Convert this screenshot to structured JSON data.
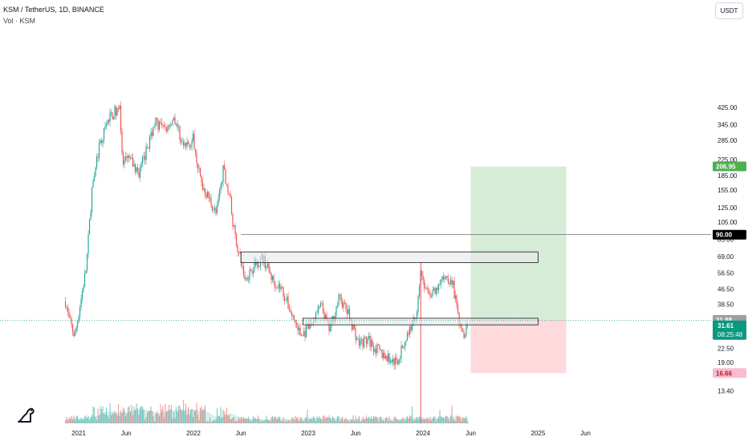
{
  "header": {
    "symbol_line": "KSM / TetherUS, 1D, BINANCE",
    "volume_line": "Vol · KSM",
    "currency_button": "USDT"
  },
  "colors": {
    "up": "#26a69a",
    "down": "#ef5350",
    "target_zone": "#c8e6c9",
    "stop_zone": "#ffcdd2",
    "target_label": "#4caf50",
    "stop_label": "#f8bbd0",
    "current_price": "#089981",
    "line_label_bg": "#000000"
  },
  "chart_data": {
    "type": "candlestick",
    "scale": "log",
    "x_tick_labels": [
      "2021",
      "Jun",
      "2022",
      "Jun",
      "2023",
      "Jun",
      "2024",
      "Jun",
      "2025",
      "Jun"
    ],
    "y_tick_labels": [
      "425.00",
      "345.00",
      "285.00",
      "225.00",
      "185.00",
      "155.00",
      "125.00",
      "105.00",
      "85.00",
      "69.00",
      "56.50",
      "46.50",
      "38.50",
      "27.50",
      "22.50",
      "19.00",
      "13.40"
    ],
    "y_ticks": [
      425,
      345,
      285,
      225,
      185,
      155,
      125,
      105,
      85,
      69,
      56.5,
      46.5,
      38.5,
      27.5,
      22.5,
      19.0,
      13.4
    ],
    "price_path": [
      [
        "2020-11-20",
        40
      ],
      [
        "2020-12-01",
        32
      ],
      [
        "2020-12-20",
        26
      ],
      [
        "2021-01-05",
        38
      ],
      [
        "2021-01-25",
        60
      ],
      [
        "2021-02-15",
        180
      ],
      [
        "2021-03-05",
        250
      ],
      [
        "2021-03-25",
        320
      ],
      [
        "2021-04-10",
        380
      ],
      [
        "2021-04-25",
        400
      ],
      [
        "2021-05-12",
        440
      ],
      [
        "2021-05-20",
        210
      ],
      [
        "2021-06-10",
        230
      ],
      [
        "2021-07-10",
        190
      ],
      [
        "2021-08-01",
        240
      ],
      [
        "2021-09-01",
        360
      ],
      [
        "2021-10-01",
        320
      ],
      [
        "2021-11-01",
        380
      ],
      [
        "2021-12-01",
        260
      ],
      [
        "2022-01-01",
        290
      ],
      [
        "2022-01-25",
        170
      ],
      [
        "2022-02-20",
        140
      ],
      [
        "2022-03-15",
        115
      ],
      [
        "2022-04-05",
        200
      ],
      [
        "2022-04-25",
        150
      ],
      [
        "2022-05-10",
        95
      ],
      [
        "2022-05-25",
        72
      ],
      [
        "2022-06-15",
        52
      ],
      [
        "2022-07-10",
        62
      ],
      [
        "2022-08-10",
        68
      ],
      [
        "2022-09-10",
        52
      ],
      [
        "2022-10-10",
        46
      ],
      [
        "2022-11-10",
        34
      ],
      [
        "2022-12-10",
        26
      ],
      [
        "2023-01-10",
        30
      ],
      [
        "2023-02-10",
        38
      ],
      [
        "2023-03-10",
        28
      ],
      [
        "2023-04-10",
        42
      ],
      [
        "2023-05-10",
        34
      ],
      [
        "2023-06-10",
        24
      ],
      [
        "2023-07-10",
        25
      ],
      [
        "2023-08-10",
        22
      ],
      [
        "2023-09-10",
        20
      ],
      [
        "2023-10-10",
        19
      ],
      [
        "2023-11-10",
        26
      ],
      [
        "2023-12-10",
        34
      ],
      [
        "2023-12-25",
        58
      ],
      [
        "2024-01-10",
        45
      ],
      [
        "2024-02-10",
        44
      ],
      [
        "2024-03-10",
        55
      ],
      [
        "2024-04-05",
        50
      ],
      [
        "2024-04-20",
        34
      ],
      [
        "2024-05-10",
        27
      ],
      [
        "2024-05-25",
        31.6
      ]
    ],
    "horizontal_line": 90.0,
    "zones": [
      {
        "name": "resistance",
        "low": 64,
        "high": 73,
        "from": "2022-06-01",
        "to": "2025-01-01"
      },
      {
        "name": "support",
        "low": 30,
        "high": 32.5,
        "from": "2022-12-15",
        "to": "2025-01-01"
      }
    ],
    "position": {
      "entry": 31.88,
      "target": 206.95,
      "stop": 16.66,
      "from": "2024-06-01",
      "to": "2025-04-01"
    },
    "labels": {
      "target": "206.95",
      "line": "90.00",
      "entry": "31.88",
      "current": "31.61",
      "countdown": "08:25:48",
      "stop": "16.66"
    },
    "last_price": 31.61
  }
}
